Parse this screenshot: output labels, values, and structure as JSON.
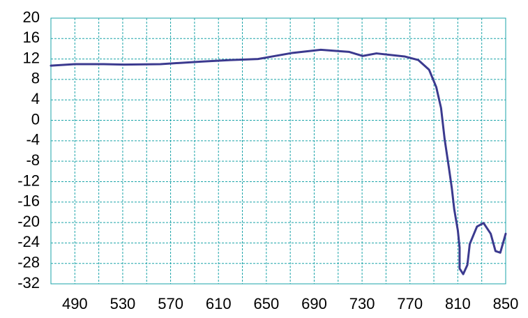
{
  "chart_data": {
    "type": "line",
    "x": [
      470,
      490,
      514,
      531,
      561.5,
      596.5,
      620,
      643,
      672,
      695.5,
      719,
      730.5,
      742,
      765.5,
      777,
      786,
      792,
      796,
      799,
      802.5,
      805,
      807,
      810,
      811.5,
      811.5,
      814.5,
      818,
      820,
      826,
      831.5,
      837.5,
      841.5,
      845.5,
      850
    ],
    "series": [
      {
        "color": "#3b3a8f",
        "values": [
          10.7,
          11.0,
          11.0,
          10.9,
          11.0,
          11.5,
          11.8,
          12.0,
          13.2,
          13.8,
          13.4,
          12.6,
          13.1,
          12.5,
          11.8,
          9.9,
          6.5,
          2.4,
          -3.7,
          -9.2,
          -13.3,
          -17.4,
          -21.5,
          -24.9,
          -29.0,
          -30.1,
          -28.3,
          -24.2,
          -20.8,
          -20.1,
          -22.2,
          -25.6,
          -25.9,
          -22.2
        ]
      }
    ],
    "xlim": [
      470,
      850
    ],
    "xticks": [
      490,
      530,
      570,
      610,
      650,
      690,
      730,
      770,
      810,
      850
    ],
    "ylim": [
      -32,
      20
    ],
    "yticks": [
      20,
      16,
      12,
      8,
      4,
      0,
      -4,
      -8,
      -12,
      -16,
      -20,
      -24,
      -28,
      -32
    ],
    "grid": true
  }
}
